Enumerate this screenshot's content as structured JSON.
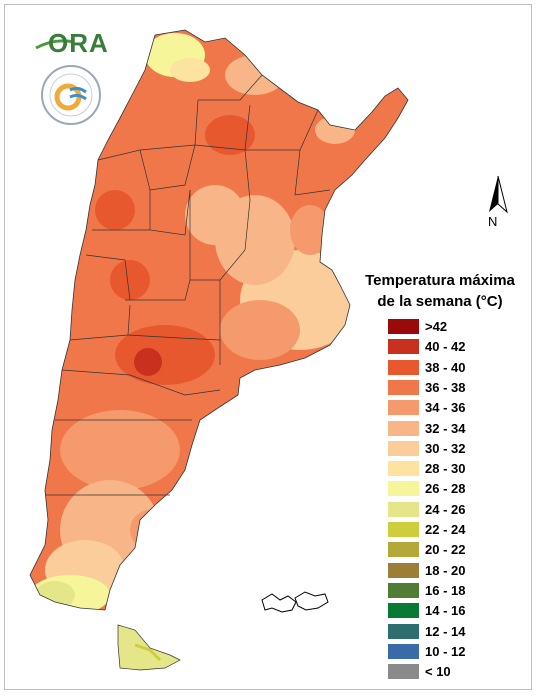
{
  "legend": {
    "title_line1": "Temperatura máxima",
    "title_line2": "de la semana (°C)",
    "items": [
      {
        "label": ">42",
        "color": "#9a0a0a"
      },
      {
        "label": "40 - 42",
        "color": "#c9301e"
      },
      {
        "label": "38 - 40",
        "color": "#e8582e"
      },
      {
        "label": "36 - 38",
        "color": "#f0774a"
      },
      {
        "label": "34 - 36",
        "color": "#f49a6c"
      },
      {
        "label": "32 - 34",
        "color": "#f7b588"
      },
      {
        "label": "30 - 32",
        "color": "#fbcd9b"
      },
      {
        "label": "28 - 30",
        "color": "#fde3a0"
      },
      {
        "label": "26 - 28",
        "color": "#f6f59a"
      },
      {
        "label": "24 - 26",
        "color": "#e5e68a"
      },
      {
        "label": "22 - 24",
        "color": "#cece3c"
      },
      {
        "label": "20 - 22",
        "color": "#b3a83a"
      },
      {
        "label": "18 - 20",
        "color": "#9c7e34"
      },
      {
        "label": "16 - 18",
        "color": "#507c36"
      },
      {
        "label": "14 - 16",
        "color": "#087a32"
      },
      {
        "label": "12 - 14",
        "color": "#2f6e6e"
      },
      {
        "label": "10 - 12",
        "color": "#3a6aa8"
      },
      {
        "label": "< 10",
        "color": "#8a8a8a"
      }
    ]
  },
  "north_arrow": {
    "label": "N"
  },
  "logos": {
    "ora": "ORA",
    "ora_icon": "ora-logo",
    "smn_icon": "smn-logo"
  }
}
